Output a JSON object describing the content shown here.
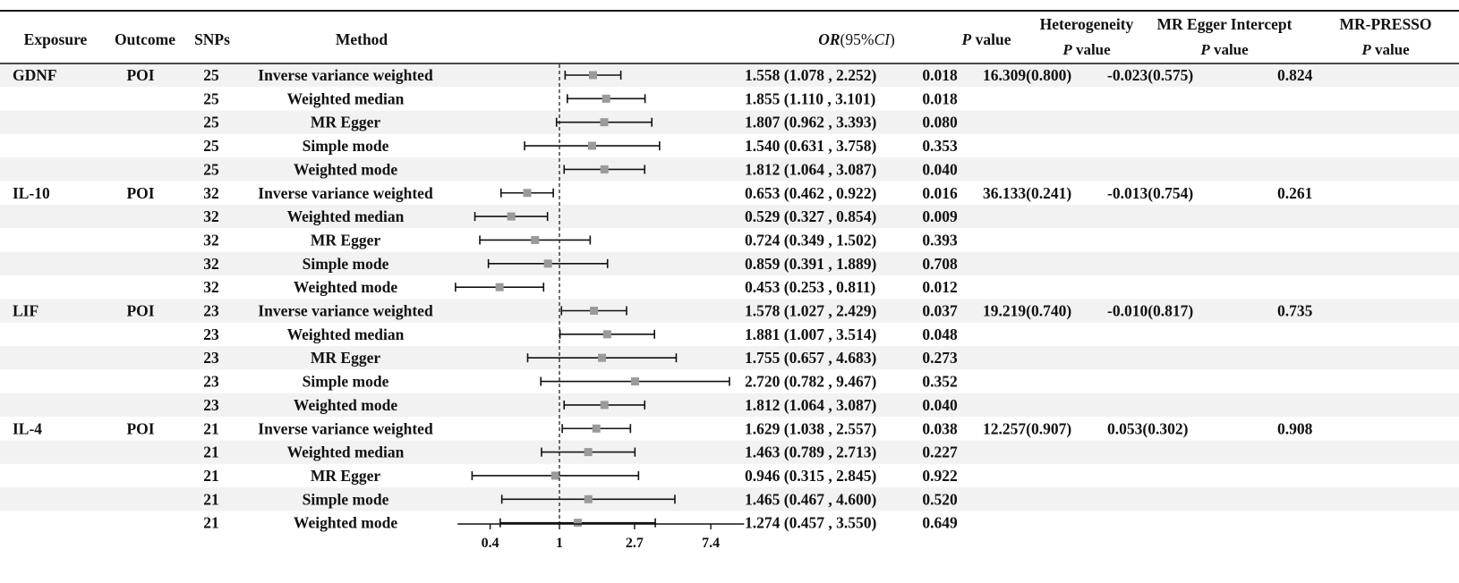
{
  "headers": {
    "exposure": "Exposure",
    "outcome": "Outcome",
    "snps": "SNPs",
    "method": "Method",
    "or_italic": "OR",
    "or_open": "(95%",
    "or_ci_italic": "CI",
    "or_close": ")",
    "p_italic": "P",
    "p_rest": " value",
    "heterogeneity": "Heterogeneity",
    "egger_intercept": "MR Egger Intercept",
    "presso": "MR-PRESSO",
    "sub_p_italic": "P",
    "sub_p_rest": " value"
  },
  "colors": {
    "row_stripe": "#f2f2f2",
    "box": "#9a9a9a",
    "line": "#111111"
  },
  "chart_data": {
    "type": "forest",
    "scale": "log",
    "reference_value": 1,
    "x_ticks": [
      "0.4",
      "1",
      "2.7",
      "7.4"
    ],
    "x_tick_values": [
      0.4,
      1,
      2.7,
      7.4
    ],
    "xlim": [
      0.26,
      11.5
    ],
    "groups": [
      {
        "exposure": "GDNF",
        "outcome": "POI",
        "heterogeneity": "16.309(0.800)",
        "egger_intercept": "-0.023(0.575)",
        "presso": "0.824",
        "rows": [
          {
            "snps": "25",
            "method": "Inverse variance weighted",
            "or": 1.558,
            "lo": 1.078,
            "hi": 2.252,
            "or_text": "1.558 (1.078 , 2.252)",
            "p": "0.018"
          },
          {
            "snps": "25",
            "method": "Weighted median",
            "or": 1.855,
            "lo": 1.11,
            "hi": 3.101,
            "or_text": "1.855 (1.110 , 3.101)",
            "p": "0.018"
          },
          {
            "snps": "25",
            "method": "MR Egger",
            "or": 1.807,
            "lo": 0.962,
            "hi": 3.393,
            "or_text": "1.807 (0.962 , 3.393)",
            "p": "0.080"
          },
          {
            "snps": "25",
            "method": "Simple mode",
            "or": 1.54,
            "lo": 0.631,
            "hi": 3.758,
            "or_text": "1.540 (0.631 , 3.758)",
            "p": "0.353"
          },
          {
            "snps": "25",
            "method": "Weighted mode",
            "or": 1.812,
            "lo": 1.064,
            "hi": 3.087,
            "or_text": "1.812 (1.064 , 3.087)",
            "p": "0.040"
          }
        ]
      },
      {
        "exposure": "IL-10",
        "outcome": "POI",
        "heterogeneity": "36.133(0.241)",
        "egger_intercept": "-0.013(0.754)",
        "presso": "0.261",
        "rows": [
          {
            "snps": "32",
            "method": "Inverse variance weighted",
            "or": 0.653,
            "lo": 0.462,
            "hi": 0.922,
            "or_text": "0.653 (0.462 , 0.922)",
            "p": "0.016"
          },
          {
            "snps": "32",
            "method": "Weighted median",
            "or": 0.529,
            "lo": 0.327,
            "hi": 0.854,
            "or_text": "0.529 (0.327 , 0.854)",
            "p": "0.009"
          },
          {
            "snps": "32",
            "method": "MR Egger",
            "or": 0.724,
            "lo": 0.349,
            "hi": 1.502,
            "or_text": "0.724 (0.349 , 1.502)",
            "p": "0.393"
          },
          {
            "snps": "32",
            "method": "Simple mode",
            "or": 0.859,
            "lo": 0.391,
            "hi": 1.889,
            "or_text": "0.859 (0.391 , 1.889)",
            "p": "0.708"
          },
          {
            "snps": "32",
            "method": "Weighted mode",
            "or": 0.453,
            "lo": 0.253,
            "hi": 0.811,
            "or_text": "0.453 (0.253 , 0.811)",
            "p": "0.012"
          }
        ]
      },
      {
        "exposure": "LIF",
        "outcome": "POI",
        "heterogeneity": "19.219(0.740)",
        "egger_intercept": "-0.010(0.817)",
        "presso": "0.735",
        "rows": [
          {
            "snps": "23",
            "method": "Inverse variance weighted",
            "or": 1.578,
            "lo": 1.027,
            "hi": 2.429,
            "or_text": "1.578 (1.027 , 2.429)",
            "p": "0.037"
          },
          {
            "snps": "23",
            "method": "Weighted median",
            "or": 1.881,
            "lo": 1.007,
            "hi": 3.514,
            "or_text": "1.881 (1.007 , 3.514)",
            "p": "0.048"
          },
          {
            "snps": "23",
            "method": "MR Egger",
            "or": 1.755,
            "lo": 0.657,
            "hi": 4.683,
            "or_text": "1.755 (0.657 , 4.683)",
            "p": "0.273"
          },
          {
            "snps": "23",
            "method": "Simple mode",
            "or": 2.72,
            "lo": 0.782,
            "hi": 9.467,
            "or_text": "2.720 (0.782 , 9.467)",
            "p": "0.352"
          },
          {
            "snps": "23",
            "method": "Weighted mode",
            "or": 1.812,
            "lo": 1.064,
            "hi": 3.087,
            "or_text": "1.812 (1.064 , 3.087)",
            "p": "0.040"
          }
        ]
      },
      {
        "exposure": "IL-4",
        "outcome": "POI",
        "heterogeneity": "12.257(0.907)",
        "egger_intercept": "0.053(0.302)",
        "presso": "0.908",
        "rows": [
          {
            "snps": "21",
            "method": "Inverse variance weighted",
            "or": 1.629,
            "lo": 1.038,
            "hi": 2.557,
            "or_text": "1.629 (1.038 , 2.557)",
            "p": "0.038"
          },
          {
            "snps": "21",
            "method": "Weighted median",
            "or": 1.463,
            "lo": 0.789,
            "hi": 2.713,
            "or_text": "1.463 (0.789 , 2.713)",
            "p": "0.227"
          },
          {
            "snps": "21",
            "method": "MR Egger",
            "or": 0.946,
            "lo": 0.315,
            "hi": 2.845,
            "or_text": "0.946 (0.315 , 2.845)",
            "p": "0.922"
          },
          {
            "snps": "21",
            "method": "Simple mode",
            "or": 1.465,
            "lo": 0.467,
            "hi": 4.6,
            "or_text": "1.465 (0.467 , 4.600)",
            "p": "0.520"
          },
          {
            "snps": "21",
            "method": "Weighted mode",
            "or": 1.274,
            "lo": 0.457,
            "hi": 3.55,
            "or_text": "1.274 (0.457 , 3.550)",
            "p": "0.649"
          }
        ]
      }
    ]
  }
}
